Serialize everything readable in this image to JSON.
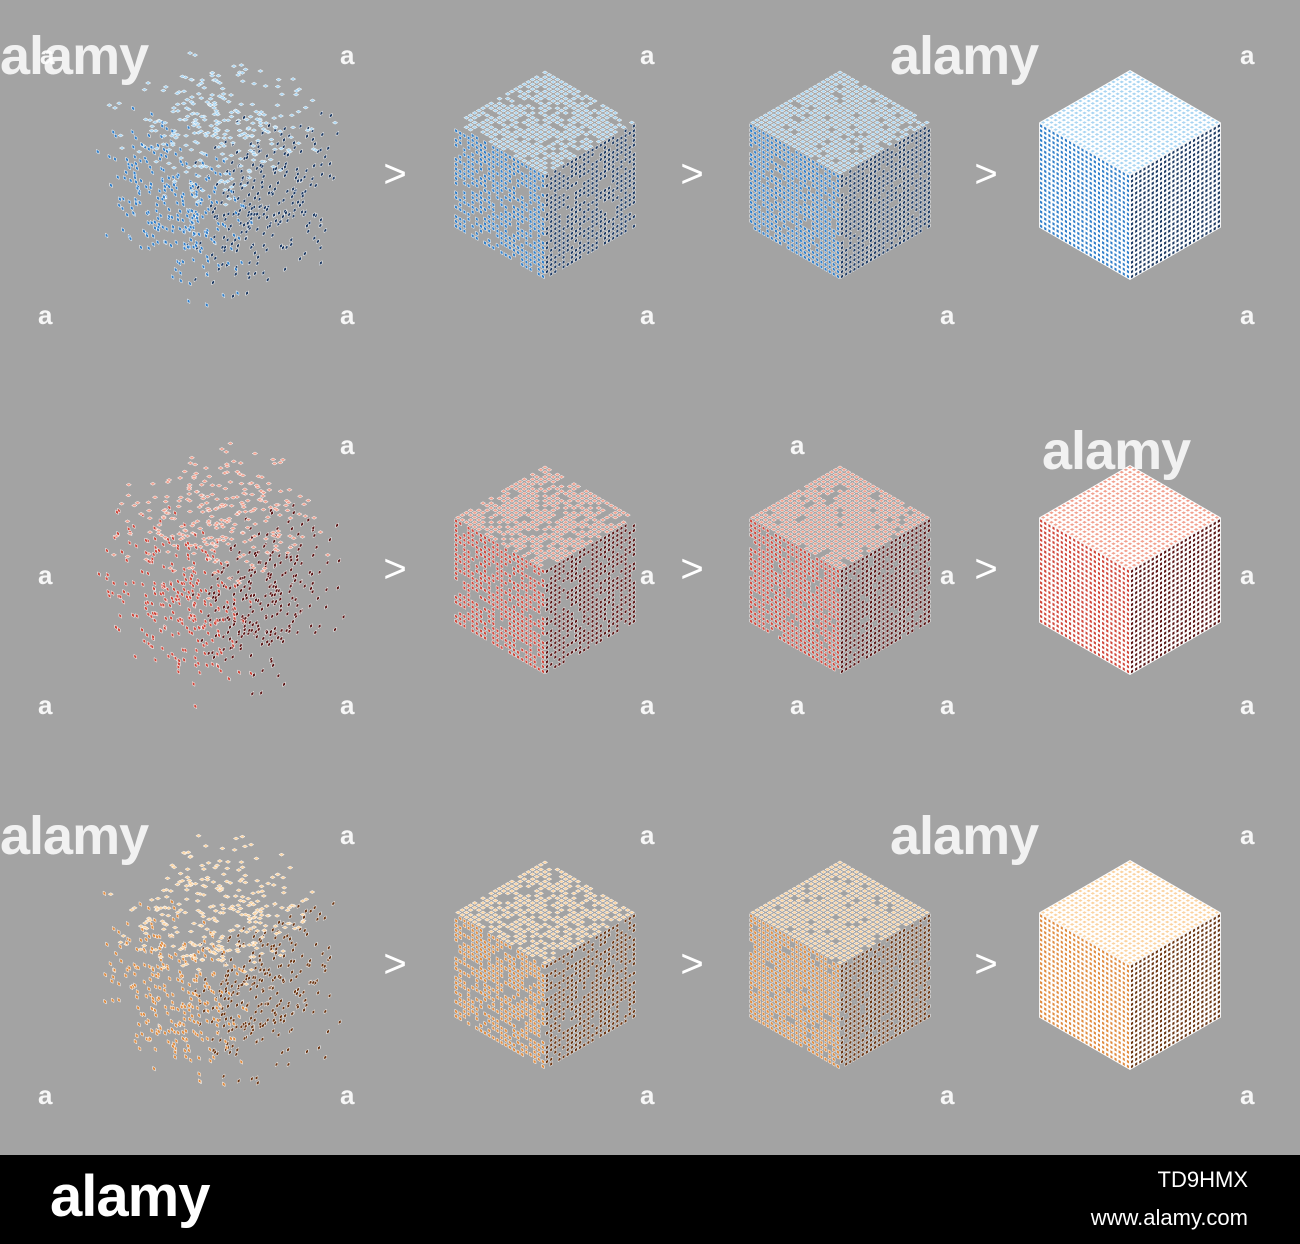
{
  "watermark": {
    "logo_text": "alamy",
    "icon_text": "a"
  },
  "arrow_symbol": ">",
  "stage_fill_fractions": [
    0.35,
    0.75,
    0.92,
    1.0
  ],
  "rows": [
    {
      "name": "blue",
      "colors": {
        "top": "#a9d5f2",
        "left": "#2f7ec9",
        "right": "#1d3a63",
        "outline": "#ffffff"
      }
    },
    {
      "name": "red",
      "colors": {
        "top": "#f2a08e",
        "left": "#d0463a",
        "right": "#5a1414",
        "outline": "#ffffff"
      }
    },
    {
      "name": "orange",
      "colors": {
        "top": "#fbd3a1",
        "left": "#e08b3e",
        "right": "#6b3512",
        "outline": "#ffffff"
      }
    }
  ],
  "footer": {
    "logo": "alamy",
    "image_id": "TD9HMX",
    "url": "www.alamy.com"
  }
}
